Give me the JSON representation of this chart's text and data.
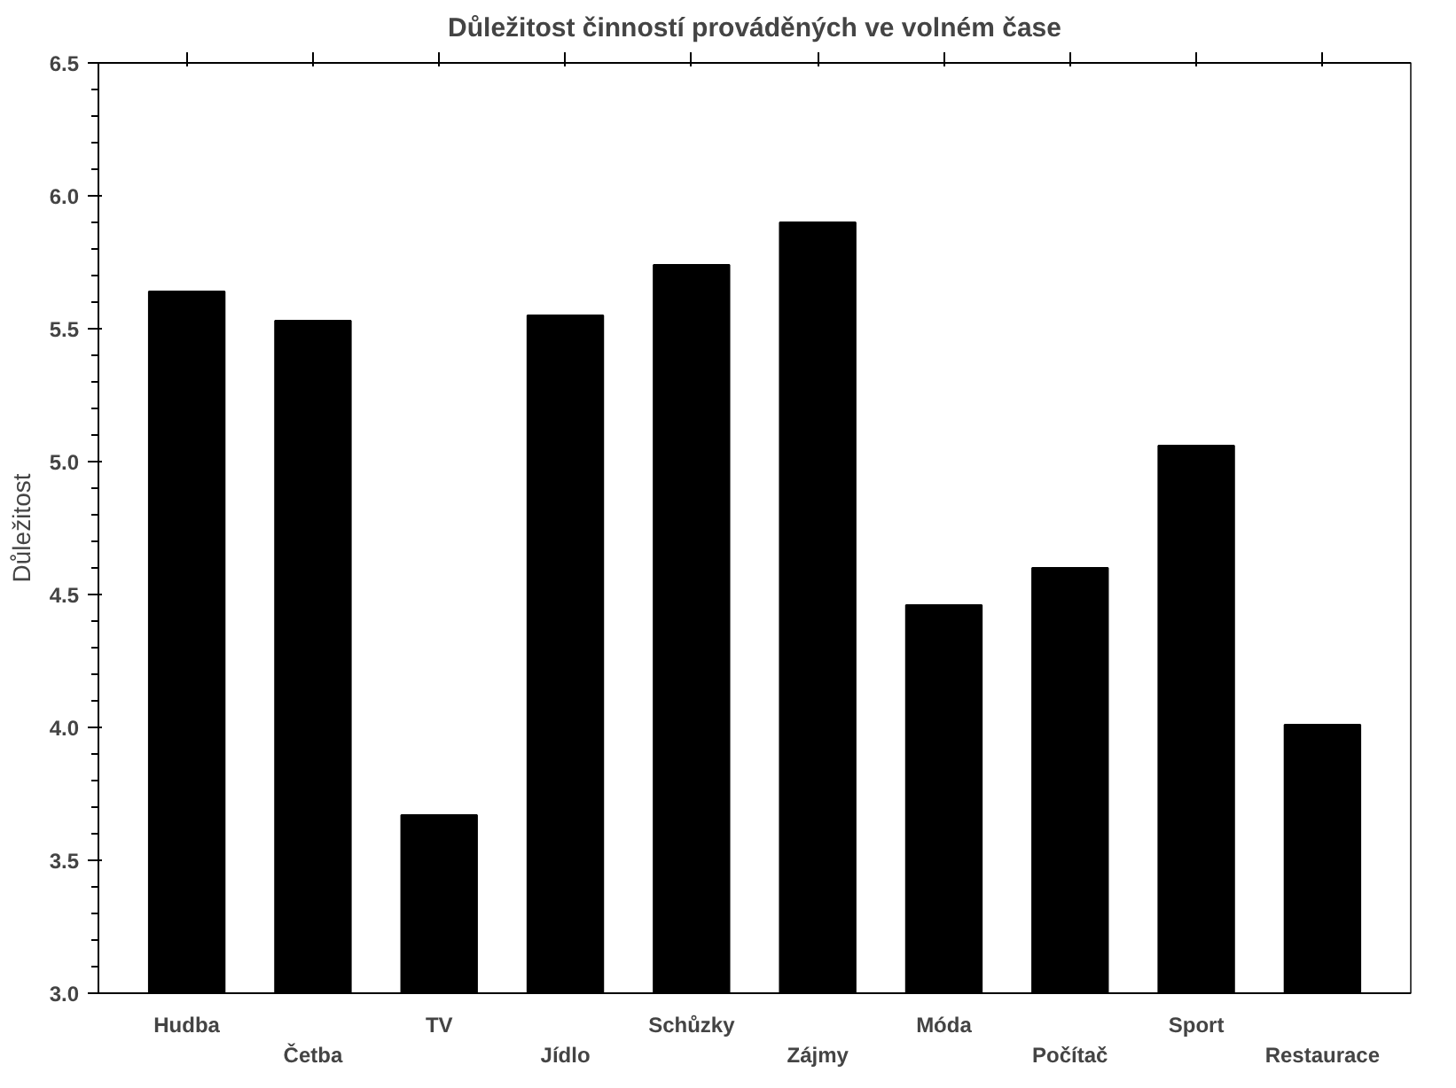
{
  "chart_data": {
    "type": "bar",
    "title": "Důležitost činností prováděných ve volném čase",
    "ylabel": "Důležitost",
    "categories": [
      "Hudba",
      "Četba",
      "TV",
      "Jídlo",
      "Schůzky",
      "Zájmy",
      "Móda",
      "Počítač",
      "Sport",
      "Restaurace"
    ],
    "values": [
      5.64,
      5.53,
      3.67,
      5.55,
      5.74,
      5.9,
      4.46,
      4.6,
      5.06,
      4.01
    ],
    "color": "#000000",
    "ylim": [
      3.0,
      6.5
    ],
    "yticks": [
      {
        "value": 3,
        "label": "3.0"
      },
      3.5,
      {
        "value": 4,
        "label": "4.0"
      },
      4.5,
      {
        "value": 5,
        "label": "5.0"
      },
      5.5,
      {
        "value": 6,
        "label": "6.0"
      },
      6.5
    ],
    "grid": false
  }
}
